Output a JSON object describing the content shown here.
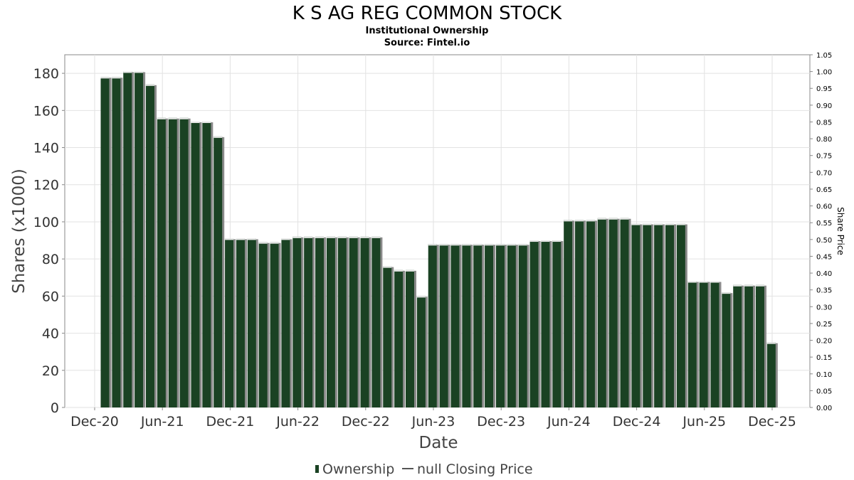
{
  "chart_data": {
    "type": "bar",
    "title": "K S AG REG COMMON STOCK",
    "subtitle": "Institutional Ownership",
    "source": "Source: Fintel.io",
    "xlabel": "Date",
    "ylabel": "Shares (x1000)",
    "y2label": "Share Price",
    "ylim": [
      0,
      190
    ],
    "yticks": [
      "0",
      "20",
      "40",
      "60",
      "80",
      "100",
      "120",
      "140",
      "160",
      "180"
    ],
    "y2lim": [
      0,
      1.05
    ],
    "y2ticks": [
      "0.00",
      "0.05",
      "0.10",
      "0.15",
      "0.20",
      "0.25",
      "0.30",
      "0.35",
      "0.40",
      "0.45",
      "0.50",
      "0.55",
      "0.60",
      "0.65",
      "0.70",
      "0.75",
      "0.80",
      "0.85",
      "0.90",
      "0.95",
      "1.00",
      "1.05"
    ],
    "x_ticks": [
      "Dec-20",
      "Jun-21",
      "Dec-21",
      "Jun-22",
      "Dec-22",
      "Jun-23",
      "Dec-23",
      "Jun-24",
      "Dec-24",
      "Jun-25",
      "Dec-25"
    ],
    "grid": true,
    "legend": {
      "position": "bottom",
      "items": [
        {
          "label": "Ownership",
          "color": "#1a4223",
          "kind": "bar"
        },
        {
          "label": "null Closing Price",
          "color": "#555555",
          "kind": "line"
        }
      ]
    },
    "series": [
      {
        "name": "Ownership",
        "color": "#1a4223",
        "values": [
          178,
          178,
          181,
          181,
          174,
          156,
          156,
          156,
          154,
          154,
          146,
          91,
          91,
          91,
          89,
          89,
          91,
          92,
          92,
          92,
          92,
          92,
          92,
          92,
          92,
          76,
          74,
          74,
          60,
          88,
          88,
          88,
          88,
          88,
          88,
          88,
          88,
          88,
          90,
          90,
          90,
          101,
          101,
          101,
          102,
          102,
          102,
          99,
          99,
          99,
          99,
          99,
          68,
          68,
          68,
          62,
          66,
          66,
          66,
          35
        ]
      }
    ]
  }
}
